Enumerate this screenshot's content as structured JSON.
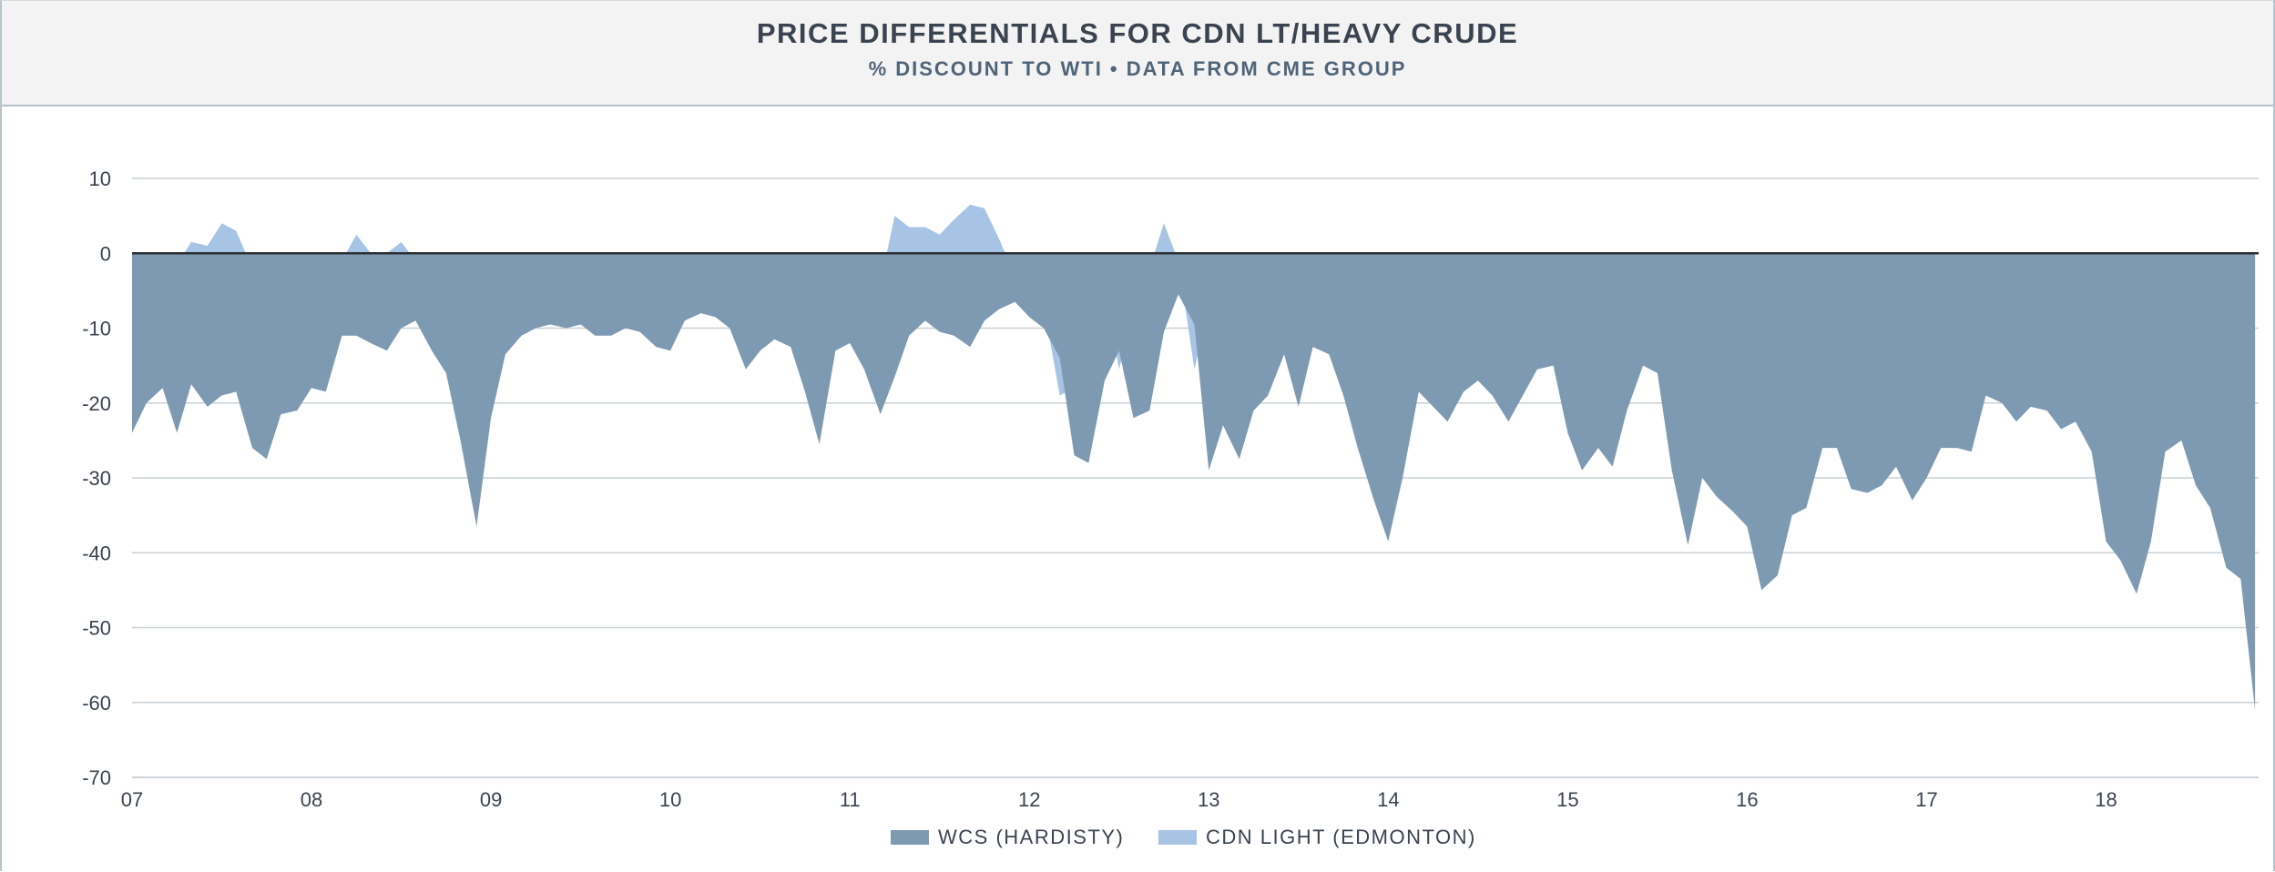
{
  "header": {
    "title": "PRICE DIFFERENTIALS FOR CDN LT/HEAVY CRUDE",
    "subtitle": "% DISCOUNT TO WTI • DATA FROM CME GROUP"
  },
  "chart_data": {
    "type": "area",
    "title": "PRICE DIFFERENTIALS FOR CDN LT/HEAVY CRUDE",
    "subtitle": "% DISCOUNT TO WTI • DATA FROM CME GROUP",
    "xlabel": "",
    "ylabel": "",
    "xlim": [
      2007,
      2018.85
    ],
    "ylim": [
      -70,
      10
    ],
    "yticks": [
      10,
      0,
      -10,
      -20,
      -30,
      -40,
      -50,
      -60,
      -70
    ],
    "xticks": [
      {
        "value": 2007,
        "label": "07"
      },
      {
        "value": 2008,
        "label": "08"
      },
      {
        "value": 2009,
        "label": "09"
      },
      {
        "value": 2010,
        "label": "10"
      },
      {
        "value": 2011,
        "label": "11"
      },
      {
        "value": 2012,
        "label": "12"
      },
      {
        "value": 2013,
        "label": "13"
      },
      {
        "value": 2014,
        "label": "14"
      },
      {
        "value": 2015,
        "label": "15"
      },
      {
        "value": 2016,
        "label": "16"
      },
      {
        "value": 2017,
        "label": "17"
      },
      {
        "value": 2018,
        "label": "18"
      }
    ],
    "grid": true,
    "zero_line": true,
    "legend_position": "bottom-center",
    "series": [
      {
        "name": "CDN LIGHT (EDMONTON)",
        "color": "#a7c4e5",
        "points": [
          [
            2007.0,
            -1
          ],
          [
            2007.08,
            -2
          ],
          [
            2007.17,
            -3.5
          ],
          [
            2007.25,
            -1.5
          ],
          [
            2007.33,
            1.5
          ],
          [
            2007.42,
            1
          ],
          [
            2007.5,
            4
          ],
          [
            2007.58,
            3
          ],
          [
            2007.67,
            -2
          ],
          [
            2007.75,
            -4
          ],
          [
            2007.83,
            -2.5
          ],
          [
            2007.92,
            -2.5
          ],
          [
            2008.0,
            0
          ],
          [
            2008.08,
            -2.5
          ],
          [
            2008.17,
            -1
          ],
          [
            2008.25,
            2.5
          ],
          [
            2008.33,
            0
          ],
          [
            2008.42,
            0
          ],
          [
            2008.5,
            1.5
          ],
          [
            2008.58,
            -1
          ],
          [
            2008.67,
            -3
          ],
          [
            2008.75,
            -5
          ],
          [
            2008.83,
            -9
          ],
          [
            2008.92,
            -22
          ],
          [
            2009.0,
            -17
          ],
          [
            2009.08,
            -8
          ],
          [
            2009.17,
            -1
          ],
          [
            2009.25,
            -2
          ],
          [
            2009.33,
            -5
          ],
          [
            2009.42,
            -6.5
          ],
          [
            2009.5,
            -5
          ],
          [
            2009.58,
            -5
          ],
          [
            2009.67,
            -3.5
          ],
          [
            2009.75,
            -4
          ],
          [
            2009.83,
            -5.5
          ],
          [
            2009.92,
            -5.5
          ],
          [
            2010.0,
            -4
          ],
          [
            2010.08,
            -1
          ],
          [
            2010.17,
            -2
          ],
          [
            2010.25,
            -3
          ],
          [
            2010.33,
            -8
          ],
          [
            2010.42,
            -7
          ],
          [
            2010.5,
            -6.5
          ],
          [
            2010.58,
            -5
          ],
          [
            2010.67,
            -6.5
          ],
          [
            2010.75,
            -10.5
          ],
          [
            2010.83,
            -5.5
          ],
          [
            2010.92,
            -5
          ],
          [
            2011.0,
            -6
          ],
          [
            2011.08,
            -5
          ],
          [
            2011.17,
            -4
          ],
          [
            2011.25,
            5
          ],
          [
            2011.33,
            3.5
          ],
          [
            2011.42,
            3.5
          ],
          [
            2011.5,
            2.5
          ],
          [
            2011.58,
            4.5
          ],
          [
            2011.67,
            6.5
          ],
          [
            2011.75,
            6
          ],
          [
            2011.83,
            2
          ],
          [
            2011.92,
            -3
          ],
          [
            2012.0,
            -5
          ],
          [
            2012.08,
            -7
          ],
          [
            2012.17,
            -19
          ],
          [
            2012.25,
            -18
          ],
          [
            2012.33,
            -9
          ],
          [
            2012.42,
            -5
          ],
          [
            2012.5,
            -15.5
          ],
          [
            2012.58,
            -8
          ],
          [
            2012.67,
            -2
          ],
          [
            2012.75,
            4
          ],
          [
            2012.83,
            -1
          ],
          [
            2012.92,
            -15.5
          ],
          [
            2013.0,
            -7
          ],
          [
            2013.08,
            -9
          ],
          [
            2013.17,
            -7
          ],
          [
            2013.25,
            -3
          ],
          [
            2013.33,
            -2
          ],
          [
            2013.42,
            -7.5
          ],
          [
            2013.5,
            -3.5
          ],
          [
            2013.58,
            -4.5
          ],
          [
            2013.67,
            -6
          ],
          [
            2013.75,
            -9.5
          ],
          [
            2013.83,
            -17
          ],
          [
            2013.92,
            -20
          ],
          [
            2014.0,
            -14
          ],
          [
            2014.08,
            -5.5
          ],
          [
            2014.17,
            -7
          ],
          [
            2014.25,
            -8
          ],
          [
            2014.33,
            -6.5
          ],
          [
            2014.42,
            -7.5
          ],
          [
            2014.5,
            -9
          ],
          [
            2014.58,
            -8
          ],
          [
            2014.67,
            -6
          ],
          [
            2014.75,
            -7
          ],
          [
            2014.83,
            -12.5
          ],
          [
            2014.92,
            -12
          ],
          [
            2015.0,
            -15.5
          ],
          [
            2015.08,
            -12
          ],
          [
            2015.17,
            -10.5
          ],
          [
            2015.25,
            -6
          ],
          [
            2015.33,
            -2.5
          ],
          [
            2015.42,
            -2
          ],
          [
            2015.5,
            -9
          ],
          [
            2015.58,
            -14
          ],
          [
            2015.67,
            -7
          ],
          [
            2015.75,
            -5.5
          ],
          [
            2015.83,
            -7
          ],
          [
            2015.92,
            -10
          ],
          [
            2016.0,
            -5
          ],
          [
            2016.08,
            -9
          ],
          [
            2016.17,
            -30
          ],
          [
            2016.25,
            -10
          ],
          [
            2016.33,
            -5
          ],
          [
            2016.42,
            -4.5
          ],
          [
            2016.5,
            -9
          ],
          [
            2016.58,
            -8
          ],
          [
            2016.67,
            -6
          ],
          [
            2016.75,
            -6.5
          ],
          [
            2016.83,
            -9
          ],
          [
            2016.92,
            -7.5
          ],
          [
            2017.0,
            -6
          ],
          [
            2017.08,
            -6
          ],
          [
            2017.17,
            -5.5
          ],
          [
            2017.25,
            -3
          ],
          [
            2017.33,
            -6
          ],
          [
            2017.42,
            -7
          ],
          [
            2017.5,
            -5.5
          ],
          [
            2017.58,
            -6
          ],
          [
            2017.67,
            -5
          ],
          [
            2017.75,
            -3
          ],
          [
            2017.83,
            -3
          ],
          [
            2017.92,
            -10
          ],
          [
            2018.0,
            -11.5
          ],
          [
            2018.08,
            -9.5
          ],
          [
            2018.17,
            -7
          ],
          [
            2018.25,
            -9.5
          ],
          [
            2018.33,
            -10
          ],
          [
            2018.42,
            -10.5
          ],
          [
            2018.5,
            -8.5
          ],
          [
            2018.58,
            -12
          ],
          [
            2018.67,
            -22
          ],
          [
            2018.75,
            -30
          ],
          [
            2018.83,
            -38
          ]
        ]
      },
      {
        "name": "WCS (HARDISTY)",
        "color": "#7e9ab2",
        "points": [
          [
            2007.0,
            -24
          ],
          [
            2007.08,
            -20
          ],
          [
            2007.17,
            -18
          ],
          [
            2007.25,
            -24
          ],
          [
            2007.33,
            -17.5
          ],
          [
            2007.42,
            -20.5
          ],
          [
            2007.5,
            -19
          ],
          [
            2007.58,
            -18.5
          ],
          [
            2007.67,
            -26
          ],
          [
            2007.75,
            -27.5
          ],
          [
            2007.83,
            -21.5
          ],
          [
            2007.92,
            -21
          ],
          [
            2008.0,
            -18
          ],
          [
            2008.08,
            -18.5
          ],
          [
            2008.17,
            -11
          ],
          [
            2008.25,
            -11
          ],
          [
            2008.33,
            -12
          ],
          [
            2008.42,
            -13
          ],
          [
            2008.5,
            -10
          ],
          [
            2008.58,
            -9
          ],
          [
            2008.67,
            -13
          ],
          [
            2008.75,
            -16
          ],
          [
            2008.83,
            -25
          ],
          [
            2008.92,
            -36.5
          ],
          [
            2009.0,
            -22
          ],
          [
            2009.08,
            -13.5
          ],
          [
            2009.17,
            -11
          ],
          [
            2009.25,
            -10
          ],
          [
            2009.33,
            -9.5
          ],
          [
            2009.42,
            -10
          ],
          [
            2009.5,
            -9.5
          ],
          [
            2009.58,
            -11
          ],
          [
            2009.67,
            -11
          ],
          [
            2009.75,
            -10
          ],
          [
            2009.83,
            -10.5
          ],
          [
            2009.92,
            -12.5
          ],
          [
            2010.0,
            -13
          ],
          [
            2010.08,
            -9
          ],
          [
            2010.17,
            -8
          ],
          [
            2010.25,
            -8.5
          ],
          [
            2010.33,
            -10
          ],
          [
            2010.42,
            -15.5
          ],
          [
            2010.5,
            -13
          ],
          [
            2010.58,
            -11.5
          ],
          [
            2010.67,
            -12.5
          ],
          [
            2010.75,
            -18.5
          ],
          [
            2010.83,
            -25.5
          ],
          [
            2010.92,
            -13
          ],
          [
            2011.0,
            -12
          ],
          [
            2011.08,
            -15.5
          ],
          [
            2011.17,
            -21.5
          ],
          [
            2011.25,
            -16.5
          ],
          [
            2011.33,
            -11
          ],
          [
            2011.42,
            -9
          ],
          [
            2011.5,
            -10.5
          ],
          [
            2011.58,
            -11
          ],
          [
            2011.67,
            -12.5
          ],
          [
            2011.75,
            -9
          ],
          [
            2011.83,
            -7.5
          ],
          [
            2011.92,
            -6.5
          ],
          [
            2012.0,
            -8.5
          ],
          [
            2012.08,
            -10
          ],
          [
            2012.17,
            -14
          ],
          [
            2012.25,
            -27
          ],
          [
            2012.33,
            -28
          ],
          [
            2012.42,
            -17
          ],
          [
            2012.5,
            -13
          ],
          [
            2012.58,
            -22
          ],
          [
            2012.67,
            -21
          ],
          [
            2012.75,
            -10.5
          ],
          [
            2012.83,
            -5.5
          ],
          [
            2012.92,
            -9.5
          ],
          [
            2013.0,
            -29
          ],
          [
            2013.08,
            -23
          ],
          [
            2013.17,
            -27.5
          ],
          [
            2013.25,
            -21
          ],
          [
            2013.33,
            -19
          ],
          [
            2013.42,
            -13.5
          ],
          [
            2013.5,
            -20.5
          ],
          [
            2013.58,
            -12.5
          ],
          [
            2013.67,
            -13.5
          ],
          [
            2013.75,
            -19
          ],
          [
            2013.83,
            -26
          ],
          [
            2013.92,
            -33
          ],
          [
            2014.0,
            -38.5
          ],
          [
            2014.08,
            -30
          ],
          [
            2014.17,
            -18.5
          ],
          [
            2014.25,
            -20.5
          ],
          [
            2014.33,
            -22.5
          ],
          [
            2014.42,
            -18.5
          ],
          [
            2014.5,
            -17
          ],
          [
            2014.58,
            -19
          ],
          [
            2014.67,
            -22.5
          ],
          [
            2014.75,
            -19
          ],
          [
            2014.83,
            -15.5
          ],
          [
            2014.92,
            -15
          ],
          [
            2015.0,
            -24
          ],
          [
            2015.08,
            -29
          ],
          [
            2015.17,
            -26
          ],
          [
            2015.25,
            -28.5
          ],
          [
            2015.33,
            -21
          ],
          [
            2015.42,
            -15
          ],
          [
            2015.5,
            -16
          ],
          [
            2015.58,
            -29
          ],
          [
            2015.67,
            -39
          ],
          [
            2015.75,
            -30
          ],
          [
            2015.83,
            -32.5
          ],
          [
            2015.92,
            -34.5
          ],
          [
            2016.0,
            -36.5
          ],
          [
            2016.08,
            -45
          ],
          [
            2016.17,
            -43
          ],
          [
            2016.25,
            -35
          ],
          [
            2016.33,
            -34
          ],
          [
            2016.42,
            -26
          ],
          [
            2016.5,
            -26
          ],
          [
            2016.58,
            -31.5
          ],
          [
            2016.67,
            -32
          ],
          [
            2016.75,
            -31
          ],
          [
            2016.83,
            -28.5
          ],
          [
            2016.92,
            -33
          ],
          [
            2017.0,
            -30
          ],
          [
            2017.08,
            -26
          ],
          [
            2017.17,
            -26
          ],
          [
            2017.25,
            -26.5
          ],
          [
            2017.33,
            -19
          ],
          [
            2017.42,
            -20
          ],
          [
            2017.5,
            -22.5
          ],
          [
            2017.58,
            -20.5
          ],
          [
            2017.67,
            -21
          ],
          [
            2017.75,
            -23.5
          ],
          [
            2017.83,
            -22.5
          ],
          [
            2017.92,
            -26.5
          ],
          [
            2018.0,
            -38.5
          ],
          [
            2018.08,
            -41
          ],
          [
            2018.17,
            -45.5
          ],
          [
            2018.25,
            -38.5
          ],
          [
            2018.33,
            -26.5
          ],
          [
            2018.42,
            -25
          ],
          [
            2018.5,
            -31
          ],
          [
            2018.58,
            -34
          ],
          [
            2018.67,
            -42
          ],
          [
            2018.75,
            -43.5
          ],
          [
            2018.83,
            -61
          ]
        ]
      }
    ]
  }
}
